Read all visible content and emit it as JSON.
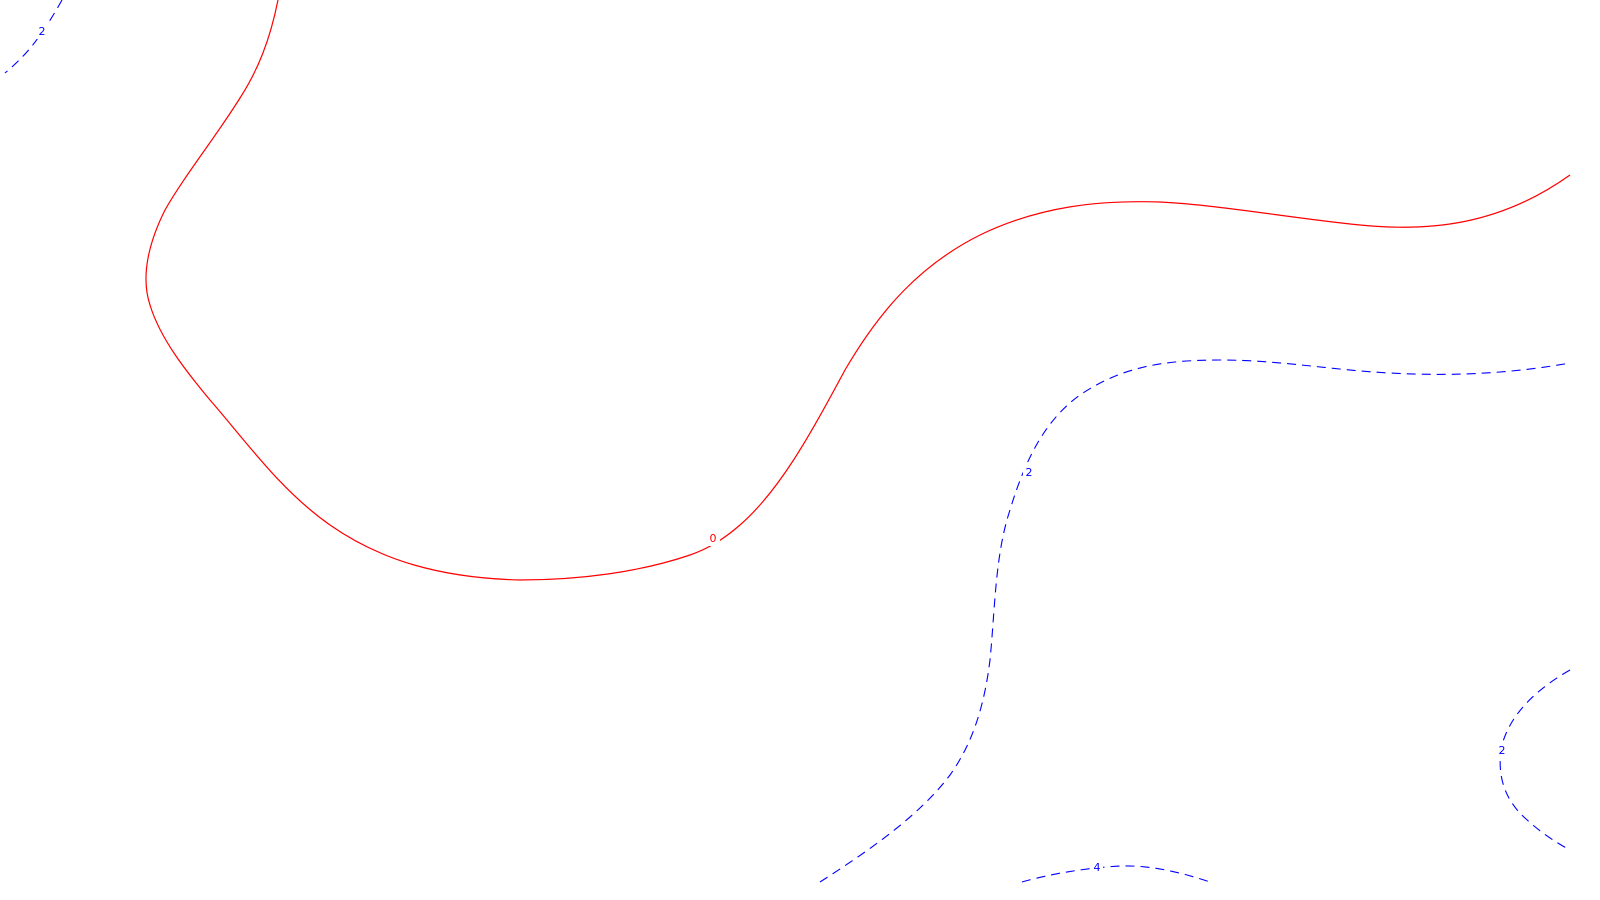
{
  "colors": {
    "background": "#ffffff",
    "zero_contour": "#ff0000",
    "dashed_contour": "#0000ff"
  },
  "contours": [
    {
      "id": "contour-0",
      "level": "0",
      "style": "solid",
      "color": "#ff0000"
    },
    {
      "id": "contour-2-top-left",
      "level": "2",
      "style": "dashed",
      "color": "#0000ff"
    },
    {
      "id": "contour-2-center",
      "level": "2",
      "style": "dashed",
      "color": "#0000ff"
    },
    {
      "id": "contour-2-bottom-right",
      "level": "2",
      "style": "dashed",
      "color": "#0000ff"
    },
    {
      "id": "contour-4-bottom",
      "level": "4",
      "style": "dashed",
      "color": "#0000ff"
    }
  ],
  "labels": {
    "zero": "0",
    "top_left": "2",
    "center": "2",
    "bottom_right": "2",
    "bottom": "4"
  }
}
